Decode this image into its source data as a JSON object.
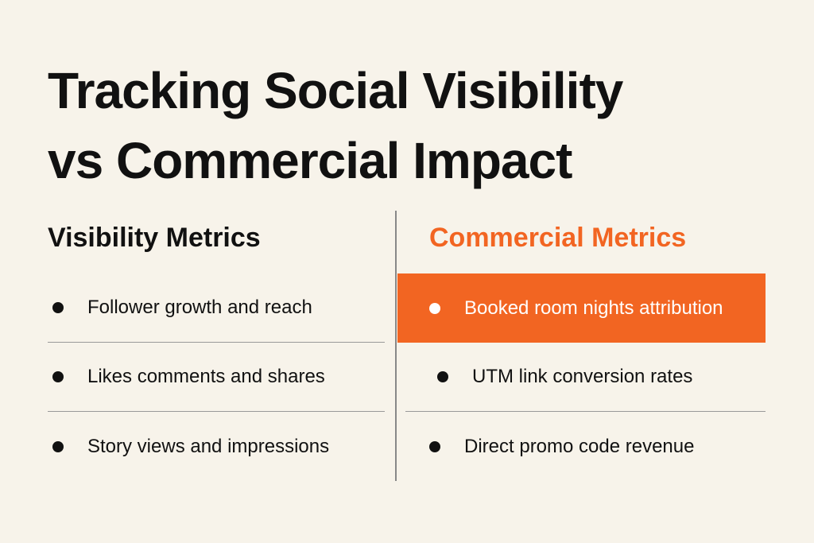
{
  "title": {
    "lines": [
      "Tracking Social Visibility",
      "vs Commercial Impact"
    ]
  },
  "columns": [
    {
      "heading": "Visibility Metrics",
      "items": [
        "Follower growth and reach",
        "Likes comments and shares",
        "Story views and impressions"
      ]
    },
    {
      "heading": "Commercial Metrics",
      "items": [
        "Booked room nights attribution",
        "UTM link conversion rates",
        "Direct promo code revenue"
      ]
    }
  ]
}
